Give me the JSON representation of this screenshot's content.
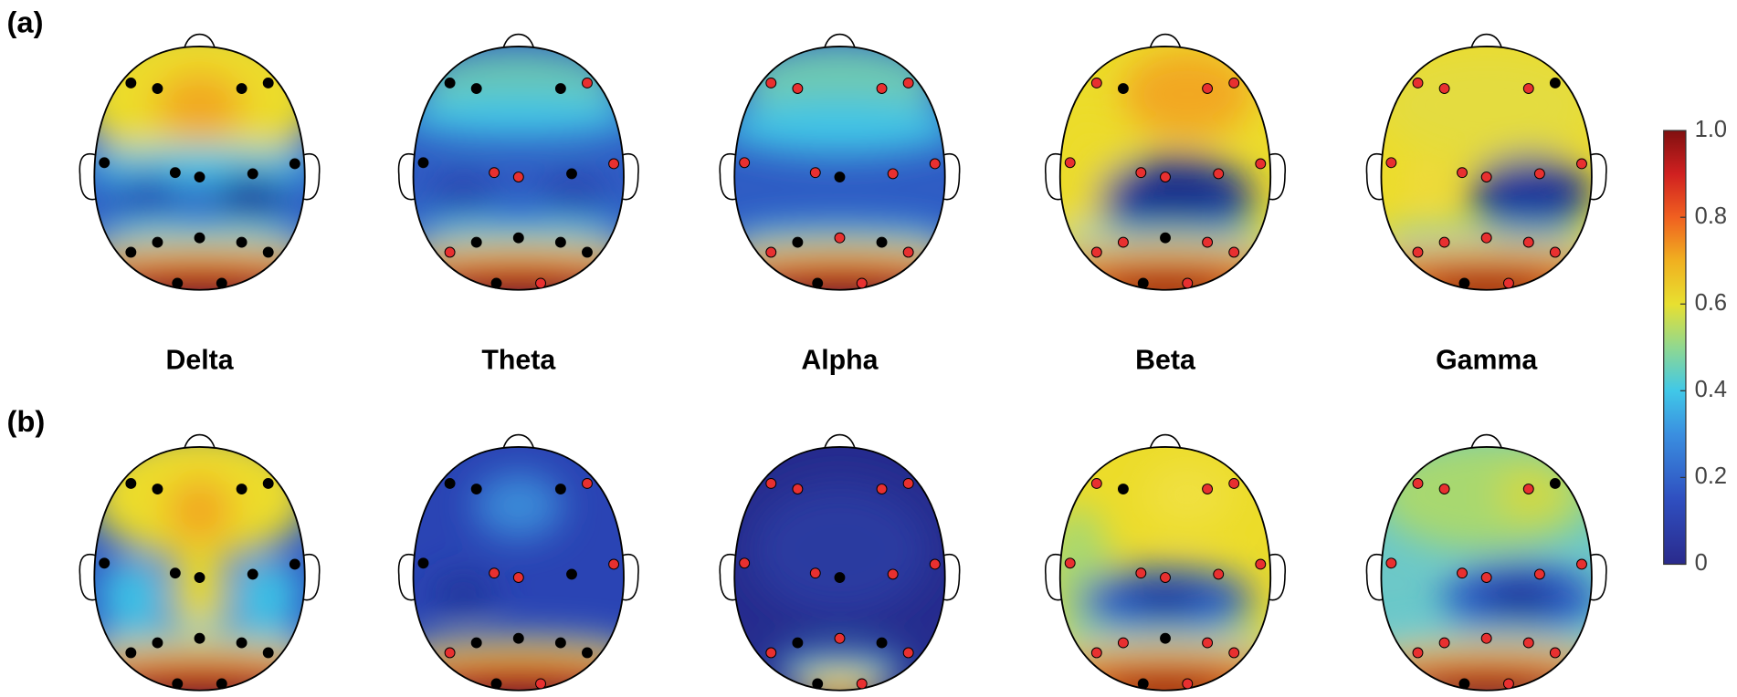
{
  "panels": [
    {
      "label": "(a)"
    },
    {
      "label": "(b)"
    }
  ],
  "bands": [
    "Delta",
    "Theta",
    "Alpha",
    "Beta",
    "Gamma"
  ],
  "colorbar": {
    "ticks": [
      0,
      0.2,
      0.4,
      0.6,
      0.8,
      {
        "value": 1,
        "label": "1.0"
      }
    ]
  }
}
